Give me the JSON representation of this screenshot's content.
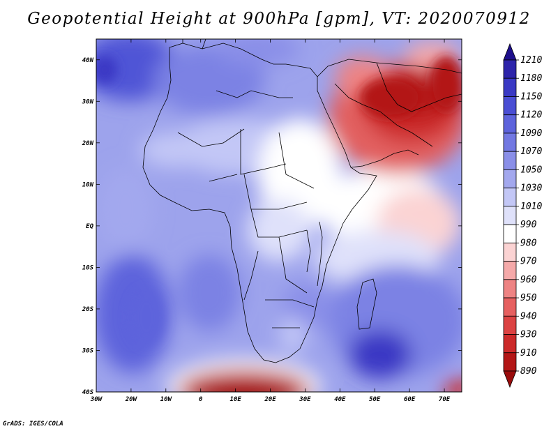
{
  "title": "Geopotential Height at 900hPa [gpm], VT: 2020070912",
  "credit": "GrADS: IGES/COLA",
  "map": {
    "projection": "latlon",
    "lon_range": [
      -30,
      75
    ],
    "lat_range": [
      -40,
      45
    ],
    "lon_ticks": [
      "30W",
      "20W",
      "10W",
      "0",
      "10E",
      "20E",
      "30E",
      "40E",
      "50E",
      "60E",
      "70E"
    ],
    "lat_ticks": [
      "40S",
      "30S",
      "20S",
      "10S",
      "EQ",
      "10N",
      "20N",
      "30N",
      "40N"
    ],
    "field": "geopotential height",
    "units": "gpm",
    "pressure_level": "900hPa"
  },
  "colorbar": {
    "levels": [
      "1210",
      "1180",
      "1150",
      "1120",
      "1090",
      "1070",
      "1050",
      "1030",
      "1010",
      "990",
      "980",
      "970",
      "960",
      "950",
      "940",
      "930",
      "910",
      "890"
    ],
    "colors": [
      "#1e0f8c",
      "#2d24aa",
      "#3a39c4",
      "#4a4ed4",
      "#5d63dc",
      "#7278e2",
      "#8a8fe8",
      "#a3a8ee",
      "#c3c7f6",
      "#dfe1fa",
      "#ffffff",
      "#fbd3d3",
      "#f5a9a9",
      "#ee8383",
      "#e66060",
      "#dc4343",
      "#cc2a2a",
      "#b31616",
      "#9a0c0c"
    ]
  }
}
